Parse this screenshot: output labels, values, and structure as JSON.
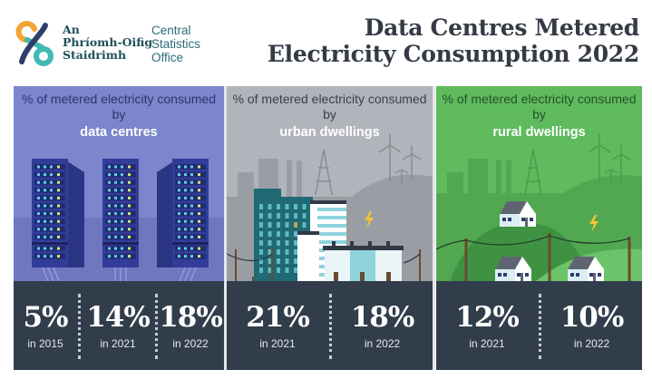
{
  "header": {
    "org_name_irish": [
      "An",
      "Phríomh-Oifig",
      "Staidrimh"
    ],
    "org_name_english": [
      "Central",
      "Statistics",
      "Office"
    ],
    "title_lines": [
      "Data Centres Metered",
      "Electricity Consumption 2022"
    ],
    "logo_icon": "cso-logo-icon"
  },
  "colors": {
    "data_centres_panel": "#7b86cc",
    "urban_panel": "#b1b4ba",
    "rural_panel": "#5fbb5d",
    "stats_bar": "#323d4c",
    "title_text": "#343b45"
  },
  "panels": [
    {
      "caption": "% of metered electricity consumed by",
      "highlight": "data centres",
      "illustration": "server-racks-icon",
      "stats": [
        {
          "value": "5%",
          "label": "in 2015"
        },
        {
          "value": "14%",
          "label": "in 2021"
        },
        {
          "value": "18%",
          "label": "in 2022"
        }
      ]
    },
    {
      "caption": "% of metered electricity consumed by",
      "highlight": "urban dwellings",
      "illustration": "city-buildings-icon",
      "stats": [
        {
          "value": "21%",
          "label": "in 2021"
        },
        {
          "value": "18%",
          "label": "in 2022"
        }
      ]
    },
    {
      "caption": "% of metered electricity consumed by",
      "highlight": "rural dwellings",
      "illustration": "rural-houses-icon",
      "stats": [
        {
          "value": "12%",
          "label": "in 2021"
        },
        {
          "value": "10%",
          "label": "in 2022"
        }
      ]
    }
  ]
}
